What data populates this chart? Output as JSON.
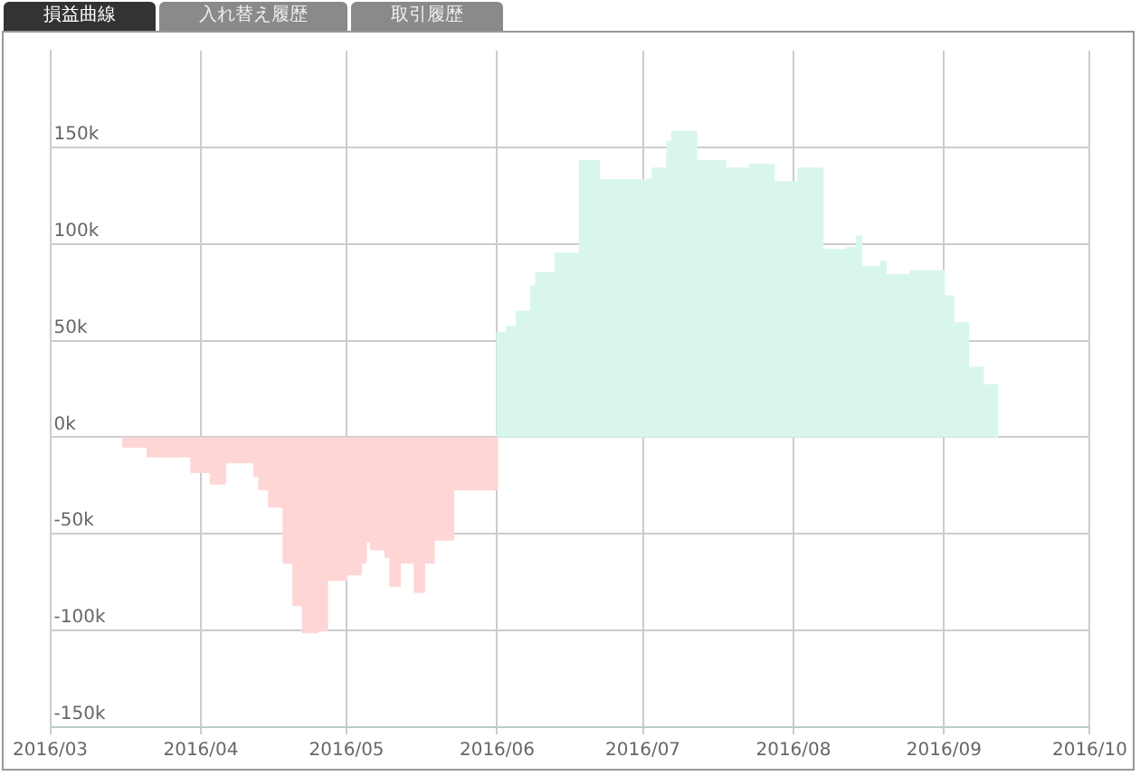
{
  "chart_data": {
    "type": "area",
    "annotations": [
      "損益曲線",
      "入れ替え履歴",
      "取引履歴"
    ],
    "xlim": [
      "2016-03",
      "2016-10"
    ],
    "xticks": [
      {
        "value": "2016-03",
        "label": "2016/03"
      },
      {
        "value": "2016-04",
        "label": "2016/04"
      },
      {
        "value": "2016-05",
        "label": "2016/05"
      },
      {
        "value": "2016-06",
        "label": "2016/06"
      },
      {
        "value": "2016-07",
        "label": "2016/07"
      },
      {
        "value": "2016-08",
        "label": "2016/08"
      },
      {
        "value": "2016-09",
        "label": "2016/09"
      },
      {
        "value": "2016-10",
        "label": "2016/10"
      }
    ],
    "ylim": [
      -150000,
      200000
    ],
    "yticks": [
      {
        "value": -150000,
        "label": "-150k"
      },
      {
        "value": -100000,
        "label": "-100k"
      },
      {
        "value": -50000,
        "label": "-50k"
      },
      {
        "value": 0,
        "label": "0k"
      },
      {
        "value": 50000,
        "label": "50k"
      },
      {
        "value": 100000,
        "label": "100k"
      },
      {
        "value": 150000,
        "label": "150k"
      }
    ],
    "grid": true,
    "legend": false,
    "series": [
      {
        "color": "#ffd6d6",
        "x": [
          "2016-03-16",
          "2016-03-16",
          "2016-03-21",
          "2016-03-21",
          "2016-03-30",
          "2016-03-30",
          "2016-04-03",
          "2016-04-03",
          "2016-04-06",
          "2016-04-06",
          "2016-04-12",
          "2016-04-12",
          "2016-04-13",
          "2016-04-13",
          "2016-04-15",
          "2016-04-15",
          "2016-04-18",
          "2016-04-18",
          "2016-04-20",
          "2016-04-20",
          "2016-04-22",
          "2016-04-22",
          "2016-04-25",
          "2016-04-25",
          "2016-04-27",
          "2016-04-27",
          "2016-05-01",
          "2016-05-01",
          "2016-05-04",
          "2016-05-04",
          "2016-05-05",
          "2016-05-05",
          "2016-05-06",
          "2016-05-06",
          "2016-05-09",
          "2016-05-09",
          "2016-05-10",
          "2016-05-10",
          "2016-05-12",
          "2016-05-12",
          "2016-05-15",
          "2016-05-15",
          "2016-05-17",
          "2016-05-17",
          "2016-05-19",
          "2016-05-19",
          "2016-05-23",
          "2016-05-23",
          "2016-06-01",
          "2016-06-01"
        ],
        "values": [
          0,
          -5000,
          -5000,
          -10000,
          -10000,
          -18000,
          -18000,
          -24000,
          -24000,
          -13000,
          -13000,
          -20000,
          -20000,
          -27000,
          -27000,
          -36000,
          -36000,
          -65000,
          -65000,
          -87000,
          -87000,
          -101000,
          -101000,
          -100000,
          -100000,
          -74000,
          -74000,
          -71000,
          -71000,
          -65000,
          -65000,
          -54000,
          -54000,
          -58000,
          -58000,
          -62000,
          -62000,
          -77000,
          -77000,
          -65000,
          -65000,
          -80000,
          -80000,
          -65000,
          -65000,
          -53000,
          -53000,
          -27000,
          -27000,
          0
        ]
      },
      {
        "color": "#d8f7ea",
        "x": [
          "2016-06-01",
          "2016-06-01",
          "2016-06-03",
          "2016-06-03",
          "2016-06-05",
          "2016-06-05",
          "2016-06-08",
          "2016-06-08",
          "2016-06-09",
          "2016-06-09",
          "2016-06-13",
          "2016-06-13",
          "2016-06-18",
          "2016-06-18",
          "2016-06-22",
          "2016-06-22",
          "2016-07-03",
          "2016-07-03",
          "2016-07-06",
          "2016-07-06",
          "2016-07-07",
          "2016-07-07",
          "2016-07-12",
          "2016-07-12",
          "2016-07-18",
          "2016-07-18",
          "2016-07-23",
          "2016-07-23",
          "2016-07-28",
          "2016-07-28",
          "2016-08-02",
          "2016-08-02",
          "2016-08-07",
          "2016-08-07",
          "2016-08-12",
          "2016-08-12",
          "2016-08-14",
          "2016-08-14",
          "2016-08-15",
          "2016-08-15",
          "2016-08-19",
          "2016-08-19",
          "2016-08-20",
          "2016-08-20",
          "2016-08-25",
          "2016-08-25",
          "2016-09-01",
          "2016-09-01",
          "2016-09-03",
          "2016-09-03",
          "2016-09-06",
          "2016-09-06",
          "2016-09-09",
          "2016-09-09",
          "2016-09-12",
          "2016-09-12"
        ],
        "values": [
          0,
          54000,
          54000,
          57000,
          57000,
          65000,
          65000,
          78000,
          78000,
          85000,
          85000,
          95000,
          95000,
          143000,
          143000,
          133000,
          133000,
          139000,
          139000,
          153000,
          153000,
          158000,
          158000,
          143000,
          143000,
          139000,
          139000,
          141000,
          141000,
          132000,
          132000,
          139000,
          139000,
          97000,
          97000,
          98000,
          98000,
          104000,
          104000,
          88000,
          88000,
          91000,
          91000,
          84000,
          84000,
          86000,
          86000,
          73000,
          73000,
          59000,
          59000,
          36000,
          36000,
          27000,
          27000,
          0
        ]
      }
    ]
  }
}
